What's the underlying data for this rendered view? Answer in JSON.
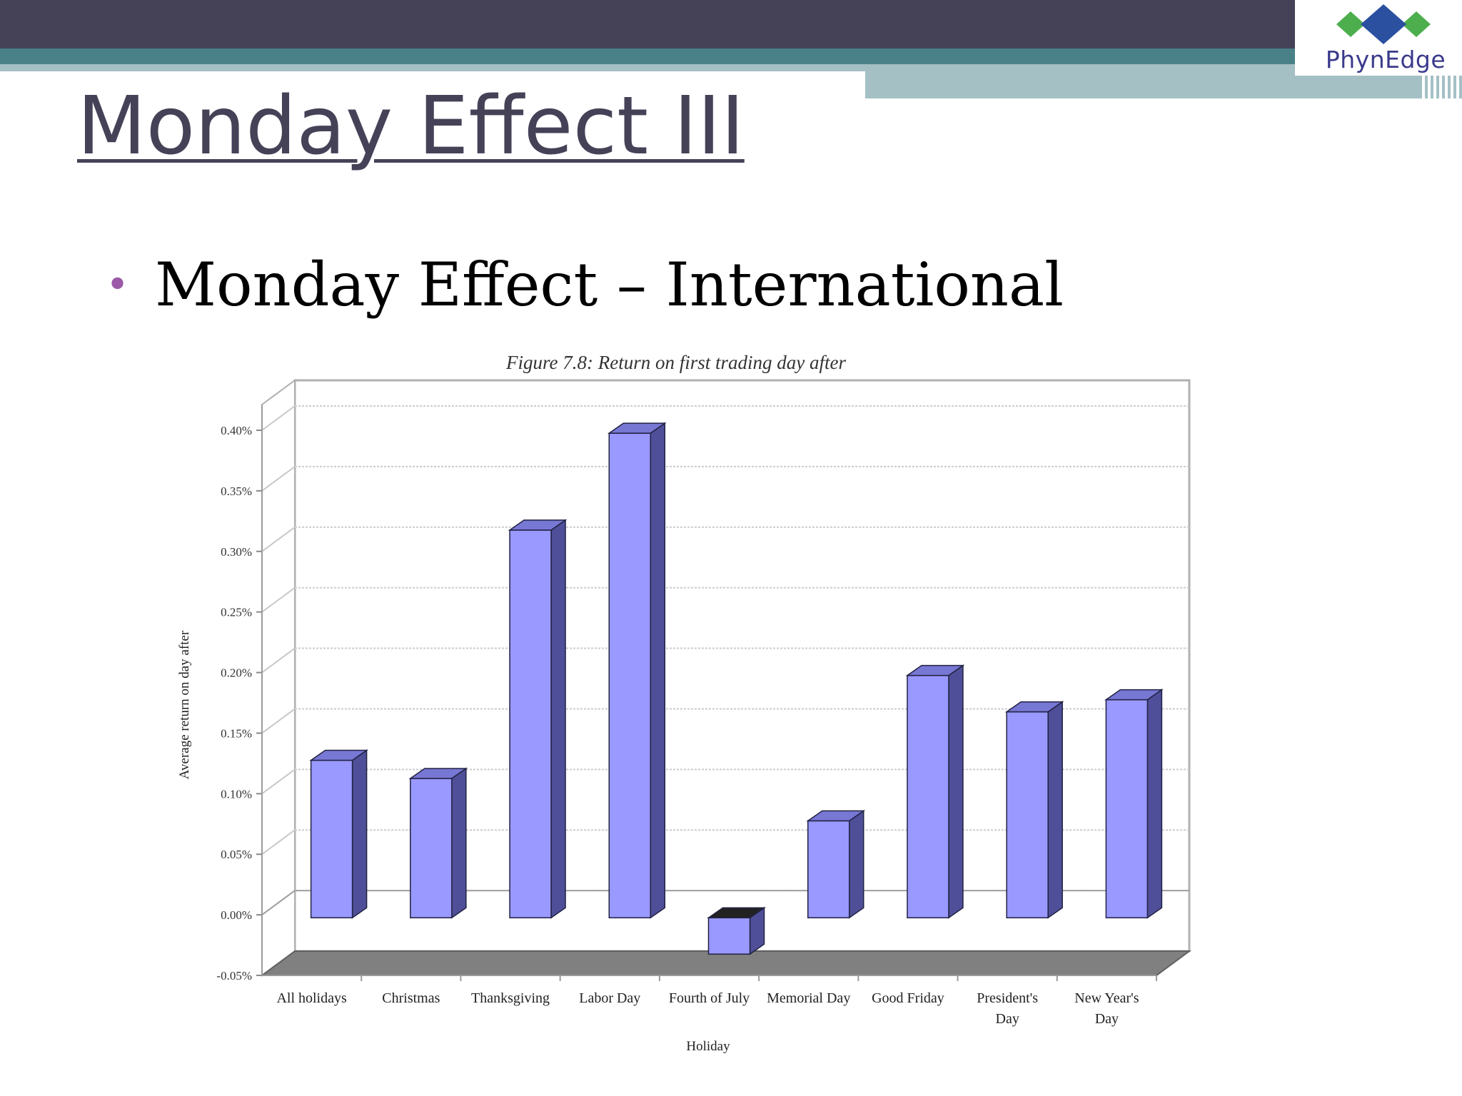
{
  "header": {
    "logo_text": "PhynEdge",
    "colors": {
      "dark_band": "#454258",
      "teal_band": "#4a8189",
      "light_band": "#a4c0c5"
    }
  },
  "slide": {
    "title": "Monday Effect III",
    "bullet": "Monday Effect – International"
  },
  "chart_data": {
    "type": "bar",
    "title": "Figure 7.8: Return on first trading day after",
    "xlabel": "Holiday",
    "ylabel": "Average return on day after",
    "categories": [
      [
        "All holidays"
      ],
      [
        "Christmas"
      ],
      [
        "Thanksgiving"
      ],
      [
        "Labor Day"
      ],
      [
        "Fourth of July"
      ],
      [
        "Memorial Day"
      ],
      [
        "Good Friday"
      ],
      [
        "President's",
        "Day"
      ],
      [
        "New Year's",
        "Day"
      ]
    ],
    "values": [
      0.13,
      0.115,
      0.32,
      0.4,
      -0.03,
      0.08,
      0.2,
      0.17,
      0.18
    ],
    "ylim": [
      -0.05,
      0.4
    ],
    "yticks": [
      -0.05,
      0.0,
      0.05,
      0.1,
      0.15,
      0.2,
      0.25,
      0.3,
      0.35,
      0.4
    ],
    "ytick_labels": [
      "-0.05%",
      "0.00%",
      "0.05%",
      "0.10%",
      "0.15%",
      "0.20%",
      "0.25%",
      "0.30%",
      "0.35%",
      "0.40%"
    ],
    "grid": true,
    "legend": "none",
    "colors": {
      "bar_front": "#9999ff",
      "bar_side": "#4f4f99",
      "bar_top": "#7777d4",
      "negative_top": "#222222",
      "floor": "#808080"
    }
  }
}
